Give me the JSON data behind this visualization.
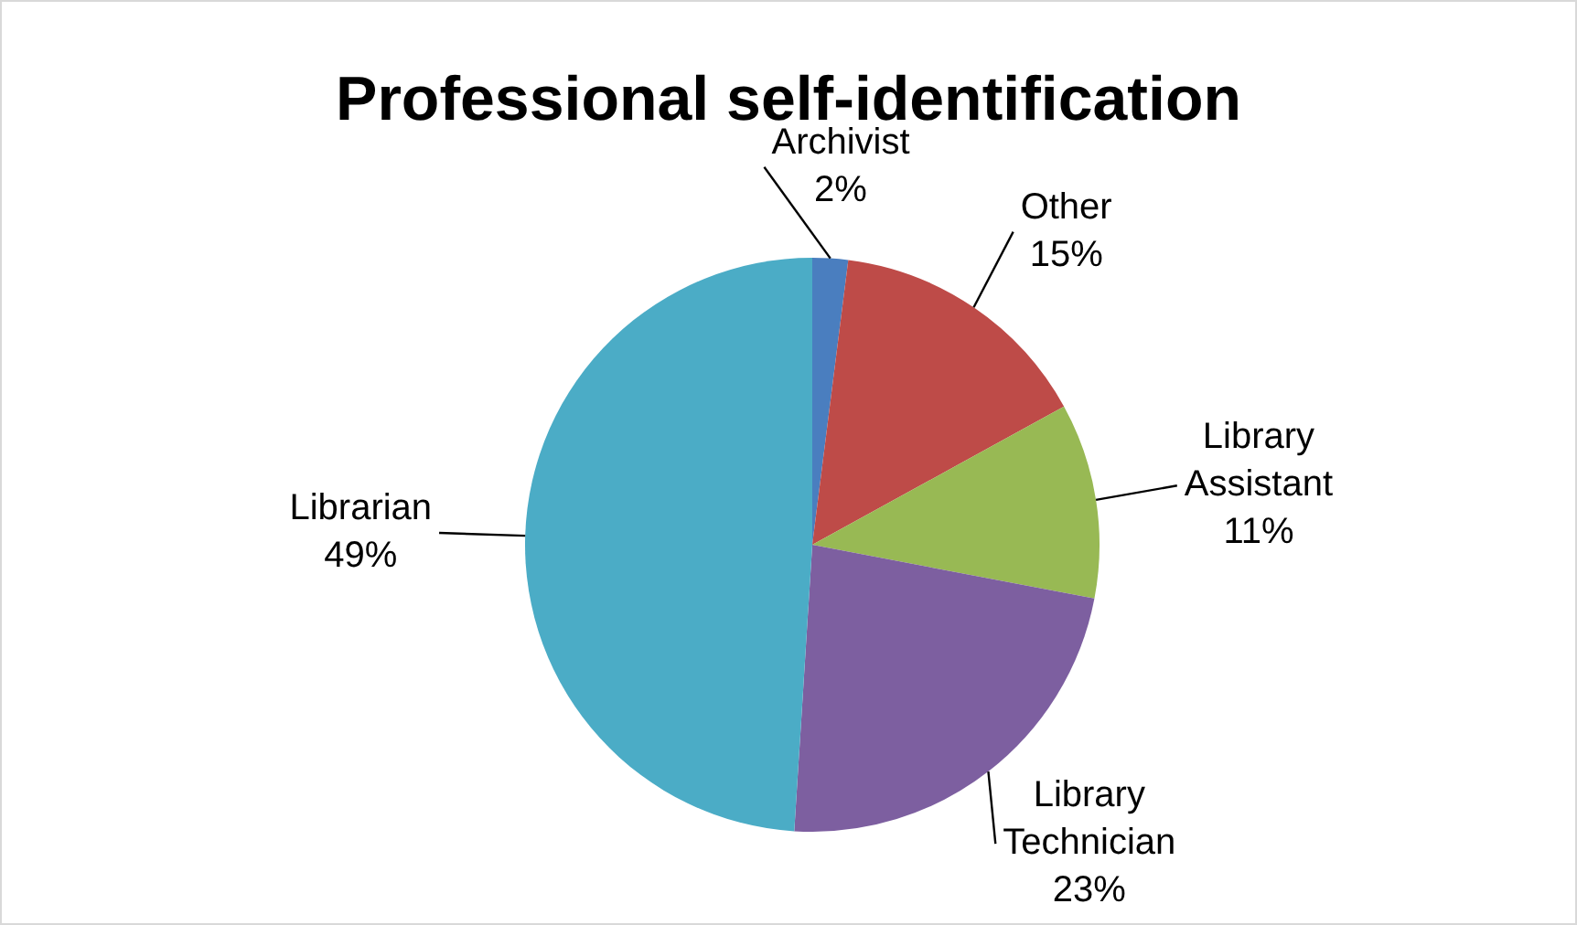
{
  "chart_data": {
    "type": "pie",
    "title": "Professional self-identification",
    "categories": [
      "Archivist",
      "Other",
      "Library Assistant",
      "Library Technician",
      "Librarian"
    ],
    "values": [
      2,
      15,
      11,
      23,
      49
    ],
    "value_labels": [
      "2%",
      "15%",
      "11%",
      "23%",
      "49%"
    ],
    "colors": [
      "#4a7ebf",
      "#be4b48",
      "#98b954",
      "#7d5fa0",
      "#4bacc6"
    ]
  }
}
